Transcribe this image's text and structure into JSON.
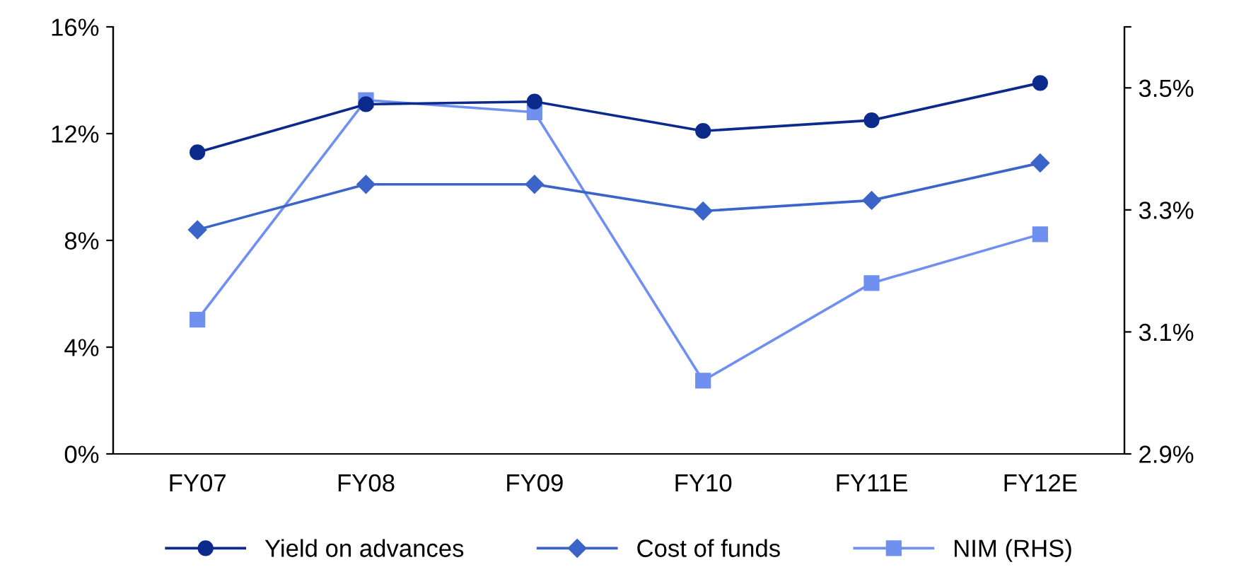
{
  "chart_data": {
    "type": "line",
    "categories": [
      "FY07",
      "FY08",
      "FY09",
      "FY10",
      "FY11E",
      "FY12E"
    ],
    "series": [
      {
        "name": "Yield on advances",
        "color": "#0b2a8c",
        "marker": "circle",
        "values": [
          11.3,
          13.1,
          13.2,
          12.1,
          12.5,
          13.9
        ]
      },
      {
        "name": "Cost of funds",
        "color": "#3a64c8",
        "marker": "diamond",
        "values": [
          8.4,
          10.1,
          10.1,
          9.1,
          9.5,
          10.9
        ]
      },
      {
        "name": "NIM (RHS)",
        "color": "#7090f0",
        "marker": "square",
        "axis": "y2",
        "values": [
          3.12,
          3.48,
          3.46,
          3.02,
          3.18,
          3.26
        ]
      }
    ],
    "ylim": [
      0,
      16
    ],
    "yticks": [
      {
        "value": 0,
        "label": "0%"
      },
      {
        "value": 4,
        "label": "4%"
      },
      {
        "value": 8,
        "label": "8%"
      },
      {
        "value": 12,
        "label": "12%"
      },
      {
        "value": 16,
        "label": "16%"
      }
    ],
    "y2lim": [
      2.9,
      3.6
    ],
    "y2ticks": [
      {
        "value": 2.9,
        "label": "2.9%"
      },
      {
        "value": 3.1,
        "label": "3.1%"
      },
      {
        "value": 3.3,
        "label": "3.3%"
      },
      {
        "value": 3.5,
        "label": "3.5%"
      },
      {
        "value": 3.6,
        "label": null
      }
    ],
    "grid": false,
    "legend": "bottom"
  }
}
